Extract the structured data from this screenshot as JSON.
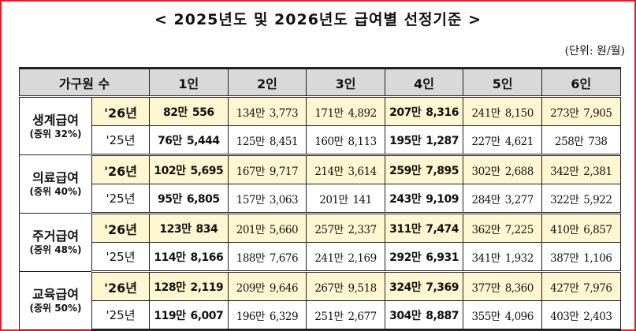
{
  "title": "< 2025년도 및 2026년도 급여별 선정기준 >",
  "unit": "(단위: 원/월)",
  "columns": {
    "household": "가구원 수",
    "sizes": [
      "1인",
      "2인",
      "3인",
      "4인",
      "5인",
      "6인"
    ]
  },
  "groups": [
    {
      "name": "생계급여",
      "sub": "(중위 32%)",
      "rows": [
        {
          "year": "'26년",
          "values": [
            [
              "82만",
              "556"
            ],
            [
              "134만",
              "3,773"
            ],
            [
              "171만",
              "4,892"
            ],
            [
              "207만",
              "8,316"
            ],
            [
              "241만",
              "8,150"
            ],
            [
              "273만",
              "7,905"
            ]
          ]
        },
        {
          "year": "'25년",
          "values": [
            [
              "76만",
              "5,444"
            ],
            [
              "125만",
              "8,451"
            ],
            [
              "160만",
              "8,113"
            ],
            [
              "195만",
              "1,287"
            ],
            [
              "227만",
              "4,621"
            ],
            [
              "258만",
              "738"
            ]
          ]
        }
      ]
    },
    {
      "name": "의료급여",
      "sub": "(중위 40%)",
      "rows": [
        {
          "year": "'26년",
          "values": [
            [
              "102만",
              "5,695"
            ],
            [
              "167만",
              "9,717"
            ],
            [
              "214만",
              "3,614"
            ],
            [
              "259만",
              "7,895"
            ],
            [
              "302만",
              "2,688"
            ],
            [
              "342만",
              "2,381"
            ]
          ]
        },
        {
          "year": "'25년",
          "values": [
            [
              "95만",
              "6,805"
            ],
            [
              "157만",
              "3,063"
            ],
            [
              "201만",
              "141"
            ],
            [
              "243만",
              "9,109"
            ],
            [
              "284만",
              "3,277"
            ],
            [
              "322만",
              "5,922"
            ]
          ]
        }
      ]
    },
    {
      "name": "주거급여",
      "sub": "(중위 48%)",
      "rows": [
        {
          "year": "'26년",
          "values": [
            [
              "123만",
              "834"
            ],
            [
              "201만",
              "5,660"
            ],
            [
              "257만",
              "2,337"
            ],
            [
              "311만",
              "7,474"
            ],
            [
              "362만",
              "7,225"
            ],
            [
              "410만",
              "6,857"
            ]
          ]
        },
        {
          "year": "'25년",
          "values": [
            [
              "114만",
              "8,166"
            ],
            [
              "188만",
              "7,676"
            ],
            [
              "241만",
              "2,169"
            ],
            [
              "292만",
              "6,931"
            ],
            [
              "341만",
              "1,932"
            ],
            [
              "387만",
              "1,106"
            ]
          ]
        }
      ]
    },
    {
      "name": "교육급여",
      "sub": "(중위 50%)",
      "rows": [
        {
          "year": "'26년",
          "values": [
            [
              "128만",
              "2,119"
            ],
            [
              "209만",
              "9,646"
            ],
            [
              "267만",
              "9,518"
            ],
            [
              "324만",
              "7,369"
            ],
            [
              "377만",
              "8,360"
            ],
            [
              "427만",
              "7,976"
            ]
          ]
        },
        {
          "year": "'25년",
          "values": [
            [
              "119만",
              "6,007"
            ],
            [
              "196만",
              "6,329"
            ],
            [
              "251만",
              "2,677"
            ],
            [
              "304만",
              "8,887"
            ],
            [
              "355만",
              "4,096"
            ],
            [
              "403만",
              "2,403"
            ]
          ]
        }
      ]
    }
  ]
}
